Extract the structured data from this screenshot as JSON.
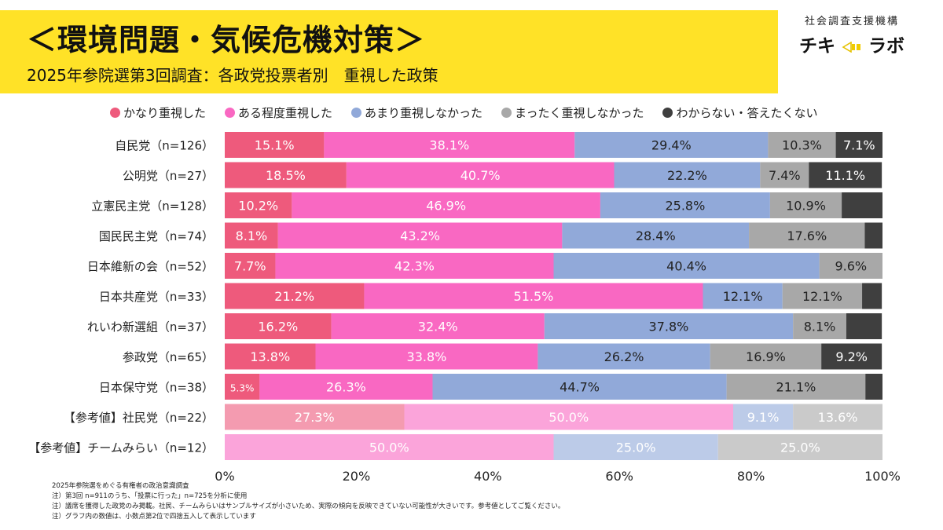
{
  "header": {
    "title": "＜環境問題・気候危機対策＞",
    "subtitle": "2025年参院選第3回調査：各政党投票者別　重視した政策",
    "brand_top": "社会調査支援機構",
    "brand_name_left": "チキ",
    "brand_name_right": "ラボ"
  },
  "colors": {
    "banner": "#ffe227",
    "very": "#ee5a7c",
    "somewhat": "#f968c2",
    "not_much": "#91a9d9",
    "not_at_all": "#a8a8a8",
    "dont_know": "#3f3f3f"
  },
  "chart_data": {
    "type": "bar",
    "orientation": "horizontal",
    "stacked": true,
    "series": [
      {
        "name": "かなり重視した",
        "color": "#ee5a7c"
      },
      {
        "name": "ある程度重視した",
        "color": "#f968c2"
      },
      {
        "name": "あまり重視しなかった",
        "color": "#91a9d9"
      },
      {
        "name": "まったく重視しなかった",
        "color": "#a8a8a8"
      },
      {
        "name": "わからない・答えたくない",
        "color": "#3f3f3f"
      }
    ],
    "categories": [
      {
        "label": "自民党（n=126）",
        "values": [
          15.1,
          38.1,
          29.4,
          10.3,
          7.1
        ],
        "labels": [
          "15.1%",
          "38.1%",
          "29.4%",
          "10.3%",
          "7.1%"
        ],
        "reference": false
      },
      {
        "label": "公明党（n=27）",
        "values": [
          18.5,
          40.7,
          22.2,
          7.4,
          11.1
        ],
        "labels": [
          "18.5%",
          "40.7%",
          "22.2%",
          "7.4%",
          "11.1%"
        ],
        "reference": false
      },
      {
        "label": "立憲民主党（n=128）",
        "values": [
          10.2,
          46.9,
          25.8,
          10.9,
          6.2
        ],
        "labels": [
          "10.2%",
          "46.9%",
          "25.8%",
          "10.9%",
          ""
        ],
        "reference": false
      },
      {
        "label": "国民民主党（n=74）",
        "values": [
          8.1,
          43.2,
          28.4,
          17.6,
          2.7
        ],
        "labels": [
          "8.1%",
          "43.2%",
          "28.4%",
          "17.6%",
          ""
        ],
        "reference": false
      },
      {
        "label": "日本維新の会（n=52）",
        "values": [
          7.7,
          42.3,
          40.4,
          9.6,
          0
        ],
        "labels": [
          "7.7%",
          "42.3%",
          "40.4%",
          "9.6%",
          ""
        ],
        "reference": false
      },
      {
        "label": "日本共産党（n=33）",
        "values": [
          21.2,
          51.5,
          12.1,
          12.1,
          3.0
        ],
        "labels": [
          "21.2%",
          "51.5%",
          "12.1%",
          "12.1%",
          ""
        ],
        "reference": false
      },
      {
        "label": "れいわ新選組（n=37）",
        "values": [
          16.2,
          32.4,
          37.8,
          8.1,
          5.4
        ],
        "labels": [
          "16.2%",
          "32.4%",
          "37.8%",
          "8.1%",
          ""
        ],
        "reference": false
      },
      {
        "label": "参政党（n=65）",
        "values": [
          13.8,
          33.8,
          26.2,
          16.9,
          9.2
        ],
        "labels": [
          "13.8%",
          "33.8%",
          "26.2%",
          "16.9%",
          "9.2%"
        ],
        "reference": false
      },
      {
        "label": "日本保守党（n=38）",
        "values": [
          5.3,
          26.3,
          44.7,
          21.1,
          2.6
        ],
        "labels": [
          "5.3%",
          "26.3%",
          "44.7%",
          "21.1%",
          ""
        ],
        "reference": false
      },
      {
        "label": "【参考値】社民党（n=22）",
        "values": [
          27.3,
          50.0,
          9.1,
          13.6,
          0
        ],
        "labels": [
          "27.3%",
          "50.0%",
          "9.1%",
          "13.6%",
          ""
        ],
        "reference": true
      },
      {
        "label": "【参考値】チームみらい（n=12）",
        "values": [
          0,
          50.0,
          25.0,
          25.0,
          0
        ],
        "labels": [
          "",
          "50.0%",
          "25.0%",
          "25.0%",
          ""
        ],
        "reference": true
      }
    ],
    "xlim": [
      0,
      100
    ],
    "xticks": [
      "0%",
      "20%",
      "40%",
      "60%",
      "80%",
      "100%"
    ],
    "grid": false,
    "legend_position": "top"
  },
  "notes": [
    "2025年参院選をめぐる有権者の政治意識調査",
    "注）第3回 n=911のうち、「投票に行った」n=725を分析に使用",
    "注）議席を獲得した政党のみ掲載。社民、チームみらいはサンプルサイズが小さいため、実際の傾向を反映できていない可能性が大きいです。参考値としてご覧ください。",
    "注）グラフ内の数値は、小数点第2位で四捨五入して表示しています"
  ]
}
